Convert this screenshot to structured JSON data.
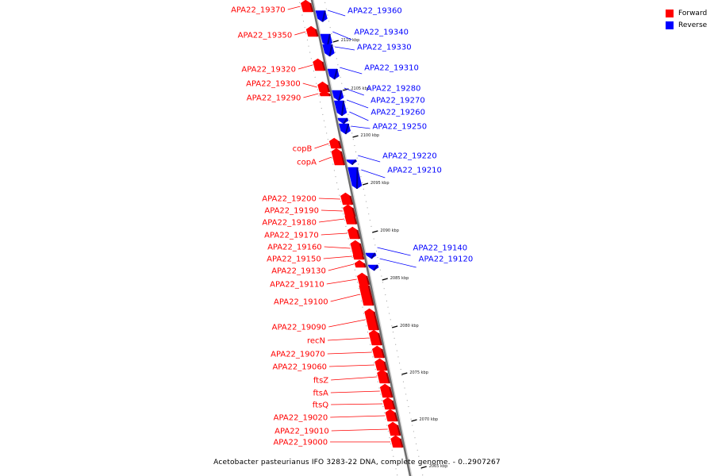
{
  "legend": {
    "forward": {
      "label": "Forward",
      "color": "#ff0000"
    },
    "reverse": {
      "label": "Reverse",
      "color": "#0000ff"
    }
  },
  "caption": "Acetobacter pasteurianus IFO 3283-22 DNA, complete genome. - 0..2907267",
  "chart_data": {
    "type": "linear-genome-map",
    "ticks_kbp": [
      "2110 kbp",
      "2105 kbp",
      "2100 kbp",
      "2095 kbp",
      "2090 kbp",
      "2085 kbp",
      "2080 kbp",
      "2075 kbp",
      "2070 kbp",
      "2065 kbp"
    ],
    "genes": [
      {
        "name": "APA22_19370",
        "strand": "forward"
      },
      {
        "name": "APA22_19360",
        "strand": "reverse"
      },
      {
        "name": "APA22_19350",
        "strand": "forward"
      },
      {
        "name": "APA22_19340",
        "strand": "reverse"
      },
      {
        "name": "APA22_19330",
        "strand": "reverse"
      },
      {
        "name": "APA22_19320",
        "strand": "forward"
      },
      {
        "name": "APA22_19310",
        "strand": "reverse"
      },
      {
        "name": "APA22_19300",
        "strand": "forward"
      },
      {
        "name": "APA22_19290",
        "strand": "forward"
      },
      {
        "name": "APA22_19280",
        "strand": "reverse"
      },
      {
        "name": "APA22_19270",
        "strand": "reverse"
      },
      {
        "name": "APA22_19260",
        "strand": "reverse"
      },
      {
        "name": "APA22_19250",
        "strand": "reverse"
      },
      {
        "name": "copB",
        "strand": "forward"
      },
      {
        "name": "copA",
        "strand": "forward"
      },
      {
        "name": "APA22_19220",
        "strand": "reverse"
      },
      {
        "name": "APA22_19210",
        "strand": "reverse"
      },
      {
        "name": "APA22_19200",
        "strand": "forward"
      },
      {
        "name": "APA22_19190",
        "strand": "forward"
      },
      {
        "name": "APA22_19180",
        "strand": "forward"
      },
      {
        "name": "APA22_19170",
        "strand": "forward"
      },
      {
        "name": "APA22_19160",
        "strand": "forward"
      },
      {
        "name": "APA22_19150",
        "strand": "forward"
      },
      {
        "name": "APA22_19140",
        "strand": "reverse"
      },
      {
        "name": "APA22_19130",
        "strand": "forward"
      },
      {
        "name": "APA22_19120",
        "strand": "reverse"
      },
      {
        "name": "APA22_19110",
        "strand": "forward"
      },
      {
        "name": "APA22_19100",
        "strand": "forward"
      },
      {
        "name": "APA22_19090",
        "strand": "forward"
      },
      {
        "name": "recN",
        "strand": "forward"
      },
      {
        "name": "APA22_19070",
        "strand": "forward"
      },
      {
        "name": "APA22_19060",
        "strand": "forward"
      },
      {
        "name": "ftsZ",
        "strand": "forward"
      },
      {
        "name": "ftsA",
        "strand": "forward"
      },
      {
        "name": "ftsQ",
        "strand": "forward"
      },
      {
        "name": "APA22_19020",
        "strand": "forward"
      },
      {
        "name": "APA22_19010",
        "strand": "forward"
      },
      {
        "name": "APA22_19000",
        "strand": "forward"
      }
    ]
  }
}
